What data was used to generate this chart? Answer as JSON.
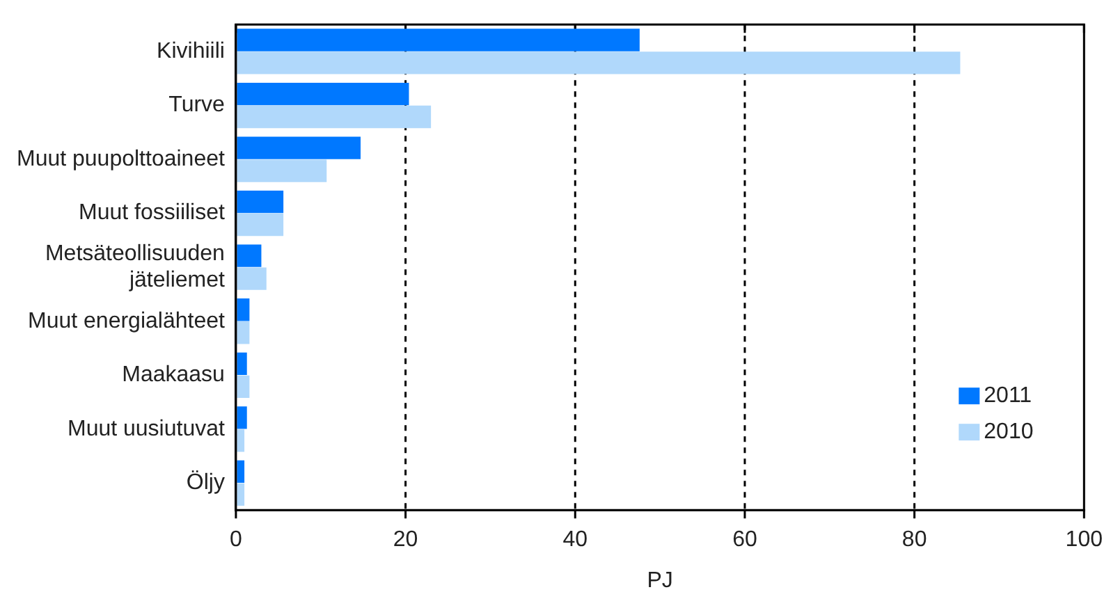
{
  "chart_data": {
    "type": "bar",
    "orientation": "horizontal",
    "xlabel": "PJ",
    "categories": [
      "Kivihiili",
      "Turve",
      "Muut puupolttoaineet",
      "Muut fossiiliset",
      "Metsäteollisuuden jäteliemet",
      "Muut energialähteet",
      "Maakaasu",
      "Muut uusiutuvat",
      "Öljy"
    ],
    "series": [
      {
        "name": "2011",
        "color": "#0078ff",
        "values": [
          47.6,
          20.4,
          14.7,
          5.6,
          3.0,
          1.6,
          1.3,
          1.3,
          1.0
        ]
      },
      {
        "name": "2010",
        "color": "#b0d8fb",
        "values": [
          85.4,
          23.0,
          10.7,
          5.6,
          3.6,
          1.6,
          1.6,
          1.0,
          1.0
        ]
      }
    ],
    "xlim": [
      0,
      100
    ],
    "xticks": [
      0,
      20,
      40,
      60,
      80,
      100
    ],
    "grid": "x",
    "legend": "bottom right"
  }
}
